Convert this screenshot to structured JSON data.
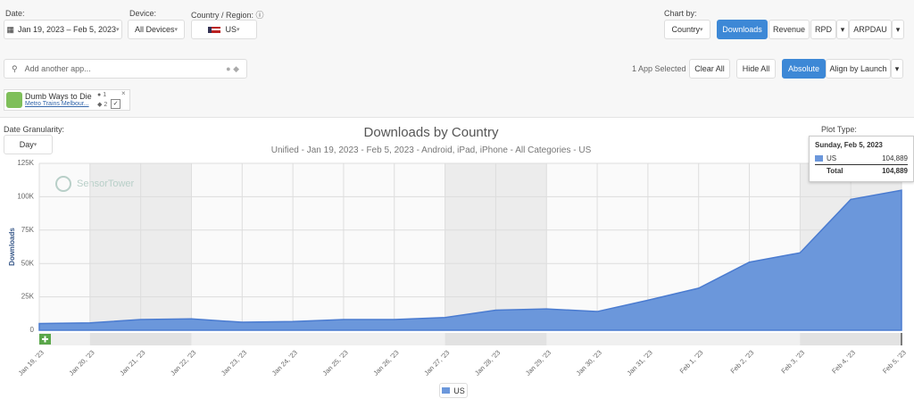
{
  "filters": {
    "date_label": "Date:",
    "date_value": "Jan 19, 2023 – Feb 5, 2023",
    "device_label": "Device:",
    "device_value": "All Devices",
    "country_label": "Country / Region:",
    "country_value": "US"
  },
  "chart_by": {
    "label": "Chart by:",
    "country": "Country",
    "options": [
      "Downloads",
      "Revenue",
      "RPD",
      "ARPDAU"
    ]
  },
  "search": {
    "placeholder": "Add another app...",
    "selected": "1 App Selected",
    "buttons": [
      "Clear All",
      "Hide All",
      "Absolute",
      "Align by Launch"
    ]
  },
  "app": {
    "name": "Dumb Ways to Die",
    "publisher": "Metro Trains Melbour...",
    "ios_rank": "1",
    "android_rank": "2"
  },
  "granularity": {
    "label": "Date Granularity:",
    "value": "Day"
  },
  "plot_type": "Plot Type:",
  "watermark": "SensorTower",
  "tooltip": {
    "date": "Sunday, Feb 5, 2023",
    "rows": [
      {
        "name": "US",
        "value": "104,889"
      },
      {
        "name": "Total",
        "value": "104,889"
      }
    ]
  },
  "chart_data": {
    "type": "area",
    "title": "Downloads by Country",
    "subtitle": "Unified - Jan 19, 2023 - Feb 5, 2023 - Android, iPad, iPhone - All Categories - US",
    "y_label": "Downloads",
    "categories": [
      "Jan 19, '23",
      "Jan 20, '23",
      "Jan 21, '23",
      "Jan 22, '23",
      "Jan 23, '23",
      "Jan 24, '23",
      "Jan 25, '23",
      "Jan 26, '23",
      "Jan 27, '23",
      "Jan 28, '23",
      "Jan 29, '23",
      "Jan 30, '23",
      "Jan 31, '23",
      "Feb 1, '23",
      "Feb 2, '23",
      "Feb 3, '23",
      "Feb 4, '23",
      "Feb 5, '23"
    ],
    "series": [
      {
        "name": "US",
        "color": "#6b97db",
        "values": [
          5000,
          5500,
          8000,
          8500,
          6000,
          6500,
          8000,
          8000,
          9500,
          15000,
          16000,
          14000,
          22500,
          31500,
          51000,
          58000,
          98000,
          104889
        ]
      }
    ],
    "ylim": [
      0,
      125000
    ],
    "yticks": [
      0,
      {
        "value": 25000,
        "label": "25K"
      },
      {
        "value": 50000,
        "label": "50K"
      },
      {
        "value": 75000,
        "label": "75K"
      },
      {
        "value": 100000,
        "label": "100K"
      },
      {
        "value": 125000,
        "label": "125K"
      }
    ],
    "grid": true
  }
}
